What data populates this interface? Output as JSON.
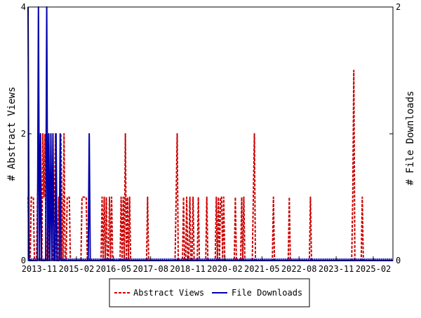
{
  "chart_data": {
    "type": "line",
    "x_tick_labels": [
      "2013-11",
      "2015-02",
      "2016-05",
      "2017-08",
      "2018-11",
      "2020-02",
      "2021-05",
      "2022-08",
      "2023-11",
      "2025-02"
    ],
    "x_range": [
      "2013-10",
      "2025-09"
    ],
    "left_axis": {
      "label": "# Abstract Views",
      "ylim": [
        0,
        4
      ],
      "ticks": [
        "0",
        "2",
        "4"
      ]
    },
    "right_axis": {
      "label": "# File Downloads",
      "ylim": [
        0,
        2
      ],
      "ticks": [
        "0",
        "1",
        "2"
      ]
    },
    "grid": false,
    "legend_position": "bottom-center",
    "series": [
      {
        "name": "Abstract Views",
        "axis": "left",
        "color": "#cc0000",
        "style": "dashed",
        "values": [
          1,
          0,
          0,
          1,
          1,
          1,
          0,
          0,
          0,
          1,
          2,
          0,
          0,
          0,
          2,
          1,
          2,
          0,
          0,
          1,
          0,
          1,
          1,
          0,
          0,
          1,
          2,
          0,
          0,
          1,
          0,
          2,
          1,
          0,
          2,
          0,
          0,
          1,
          1,
          1,
          0,
          0,
          0,
          0,
          0,
          0,
          0,
          0,
          0,
          0,
          0,
          1,
          1,
          1,
          1,
          1,
          0,
          0,
          0,
          0,
          0,
          0,
          0,
          0,
          0,
          0,
          0,
          0,
          0,
          0,
          1,
          0,
          1,
          0,
          1,
          0,
          0,
          1,
          0,
          1,
          0,
          0,
          0,
          0,
          0,
          0,
          0,
          0,
          1,
          0,
          1,
          0,
          2,
          0,
          1,
          0,
          1,
          0,
          0,
          0,
          0,
          0,
          0,
          0,
          0,
          0,
          0,
          0,
          0,
          0,
          0,
          0,
          0,
          1,
          0,
          0,
          0,
          0,
          0,
          0,
          0,
          0,
          0,
          0,
          0,
          0,
          0,
          0,
          0,
          0,
          0,
          0,
          0,
          0,
          0,
          0,
          0,
          0,
          0,
          0,
          1,
          2,
          0,
          0,
          0,
          0,
          0,
          1,
          0,
          0,
          1,
          0,
          0,
          1,
          0,
          0,
          1,
          0,
          0,
          0,
          0,
          1,
          0,
          0,
          0,
          0,
          0,
          0,
          0,
          1,
          0,
          0,
          0,
          0,
          0,
          0,
          0,
          0,
          1,
          0,
          1,
          0,
          1,
          1,
          0,
          1,
          0,
          0,
          0,
          0,
          0,
          0,
          0,
          0,
          0,
          0,
          1,
          0,
          0,
          0,
          0,
          0,
          1,
          0,
          1,
          0,
          0,
          0,
          0,
          0,
          0,
          0,
          0,
          1,
          2,
          0,
          0,
          0,
          0,
          0,
          0,
          0,
          0,
          0,
          0,
          0,
          0,
          0,
          0,
          0,
          0,
          0,
          1,
          0,
          0,
          0,
          0,
          0,
          0,
          0,
          0,
          0,
          0,
          0,
          0,
          0,
          0,
          1,
          0,
          0,
          0,
          0,
          0,
          0,
          0,
          0,
          0,
          0,
          0,
          0,
          0,
          0,
          0,
          0,
          0,
          0,
          0,
          1,
          0,
          0,
          0,
          0,
          0,
          0,
          0,
          0,
          0,
          0,
          0,
          0,
          0,
          0,
          0,
          0,
          0,
          0,
          0,
          0,
          0,
          0,
          0,
          0,
          0,
          0,
          0,
          0,
          0,
          0,
          0,
          0,
          0,
          0,
          0,
          0,
          0,
          0,
          0,
          1,
          3,
          0,
          0,
          0,
          0,
          0,
          0,
          0,
          1,
          0,
          0,
          0,
          0,
          0,
          0,
          0,
          0,
          0,
          0,
          0,
          0,
          0,
          0,
          0,
          0,
          0,
          0,
          0,
          0,
          0,
          0,
          0,
          0,
          0,
          0,
          0,
          0,
          0
        ]
      },
      {
        "name": "File Downloads",
        "axis": "right",
        "color": "#0000aa",
        "style": "solid",
        "values": [
          2,
          0,
          0,
          0,
          0,
          0,
          0,
          0,
          0,
          0,
          2,
          0,
          1,
          0,
          0,
          0,
          0,
          0,
          2,
          0,
          1,
          0,
          1,
          0,
          1,
          0,
          0,
          1,
          0,
          0,
          0,
          1,
          0,
          0,
          0,
          0,
          0,
          0,
          0,
          0,
          0,
          0,
          0,
          0,
          0,
          0,
          0,
          0,
          0,
          0,
          0,
          0,
          0,
          0,
          0,
          0,
          0,
          0,
          0,
          1,
          0,
          0,
          0,
          0,
          0,
          0,
          0,
          0,
          0,
          0,
          0,
          0,
          0,
          0,
          0,
          0,
          0,
          0,
          0,
          0,
          0,
          0,
          0,
          0,
          0,
          0,
          0,
          0,
          0,
          0,
          0,
          0,
          0,
          0,
          0,
          0,
          0,
          0,
          0,
          0,
          0,
          0,
          0,
          0,
          0,
          0,
          0,
          0,
          0,
          0,
          0,
          0,
          0,
          0,
          0,
          0,
          0,
          0,
          0,
          0,
          0,
          0,
          0,
          0,
          0,
          0,
          0,
          0,
          0,
          0,
          0,
          0,
          0,
          0,
          0,
          0,
          0,
          0,
          0,
          0,
          0,
          0,
          0,
          0,
          0,
          0,
          0,
          0,
          0,
          0,
          0,
          0,
          0,
          0,
          0,
          0,
          0,
          0,
          0,
          0,
          0,
          0,
          0,
          0,
          0,
          0,
          0,
          0,
          0,
          0,
          0,
          0,
          0,
          0,
          0,
          0,
          0,
          0,
          0,
          0,
          0,
          0,
          0,
          0,
          0,
          0,
          0,
          0,
          0,
          0,
          0,
          0,
          0,
          0,
          0,
          0,
          0,
          0,
          0,
          0,
          0,
          0,
          0,
          0,
          0,
          0,
          0,
          0,
          0,
          0,
          0,
          0,
          0,
          0,
          0,
          0,
          0,
          0,
          0,
          0,
          0,
          0,
          0,
          0,
          0,
          0,
          0,
          0,
          0,
          0,
          0,
          0,
          0,
          0,
          0,
          0,
          0,
          0,
          0,
          0,
          0,
          0,
          0,
          0,
          0,
          0,
          0,
          0,
          0,
          0,
          0,
          0,
          0,
          0,
          0,
          0,
          0,
          0,
          0,
          0,
          0,
          0,
          0,
          0,
          0,
          0,
          0,
          0,
          0,
          0,
          0,
          0,
          0,
          0,
          0,
          0,
          0,
          0,
          0,
          0,
          0,
          0,
          0,
          0,
          0,
          0,
          0,
          0,
          0,
          0,
          0,
          0,
          0,
          0,
          0,
          0,
          0,
          0,
          0,
          0,
          0,
          0,
          0,
          0,
          0,
          0,
          0,
          0,
          0,
          0,
          0,
          0,
          0,
          0,
          0,
          0,
          0,
          0,
          0,
          0,
          0,
          0,
          0,
          0,
          0,
          0,
          0,
          0,
          0,
          0,
          0,
          0,
          0,
          0,
          0,
          0,
          0,
          0,
          0,
          0,
          0,
          0,
          0,
          0,
          0,
          0,
          0,
          0,
          0,
          0,
          0,
          0,
          0
        ]
      }
    ]
  }
}
